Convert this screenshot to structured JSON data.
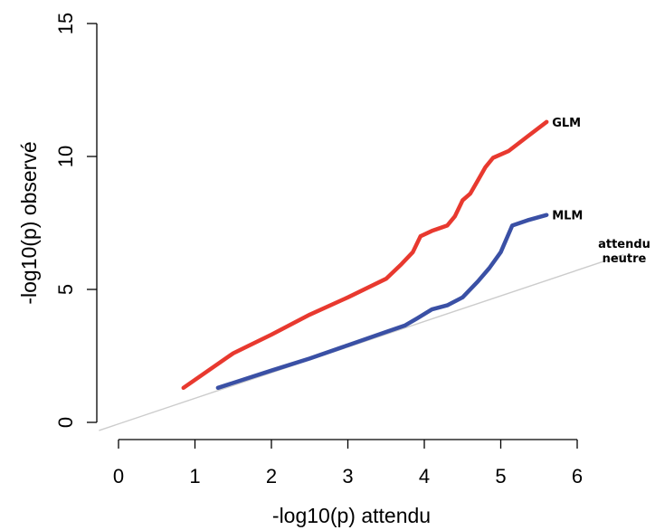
{
  "chart_data": {
    "type": "line",
    "xlabel": "-log10(p) attendu",
    "ylabel": "-log10(p) observé",
    "xlim": [
      0,
      6
    ],
    "ylim": [
      0,
      15
    ],
    "x_ticks": [
      "0",
      "1",
      "2",
      "3",
      "4",
      "5",
      "6"
    ],
    "y_ticks": [
      "0",
      "5",
      "10",
      "15"
    ],
    "grid": false,
    "legend": "none (series labelled at line ends)",
    "series": [
      {
        "name": "GLM",
        "color": "#e8392f",
        "points": [
          [
            0.85,
            1.3
          ],
          [
            1.5,
            2.6
          ],
          [
            2.0,
            3.3
          ],
          [
            2.5,
            4.05
          ],
          [
            3.0,
            4.7
          ],
          [
            3.5,
            5.4
          ],
          [
            3.7,
            5.95
          ],
          [
            3.85,
            6.4
          ],
          [
            3.95,
            7.0
          ],
          [
            4.1,
            7.2
          ],
          [
            4.3,
            7.4
          ],
          [
            4.4,
            7.75
          ],
          [
            4.5,
            8.35
          ],
          [
            4.6,
            8.6
          ],
          [
            4.7,
            9.1
          ],
          [
            4.8,
            9.6
          ],
          [
            4.9,
            9.95
          ],
          [
            5.1,
            10.2
          ],
          [
            5.35,
            10.75
          ],
          [
            5.6,
            11.3
          ]
        ]
      },
      {
        "name": "MLM",
        "color": "#3a50a5",
        "points": [
          [
            1.3,
            1.3
          ],
          [
            2.0,
            1.95
          ],
          [
            2.5,
            2.4
          ],
          [
            3.0,
            2.9
          ],
          [
            3.5,
            3.4
          ],
          [
            3.75,
            3.65
          ],
          [
            3.9,
            3.9
          ],
          [
            4.1,
            4.25
          ],
          [
            4.3,
            4.4
          ],
          [
            4.5,
            4.7
          ],
          [
            4.7,
            5.3
          ],
          [
            4.85,
            5.8
          ],
          [
            5.0,
            6.4
          ],
          [
            5.15,
            7.4
          ],
          [
            5.35,
            7.6
          ],
          [
            5.6,
            7.8
          ]
        ]
      },
      {
        "name": "attendu neutre",
        "label_lines": [
          "attendu",
          "neutre"
        ],
        "color": "#cccccc",
        "points": [
          [
            -0.25,
            -0.3
          ],
          [
            6.6,
            6.3
          ]
        ]
      }
    ]
  }
}
